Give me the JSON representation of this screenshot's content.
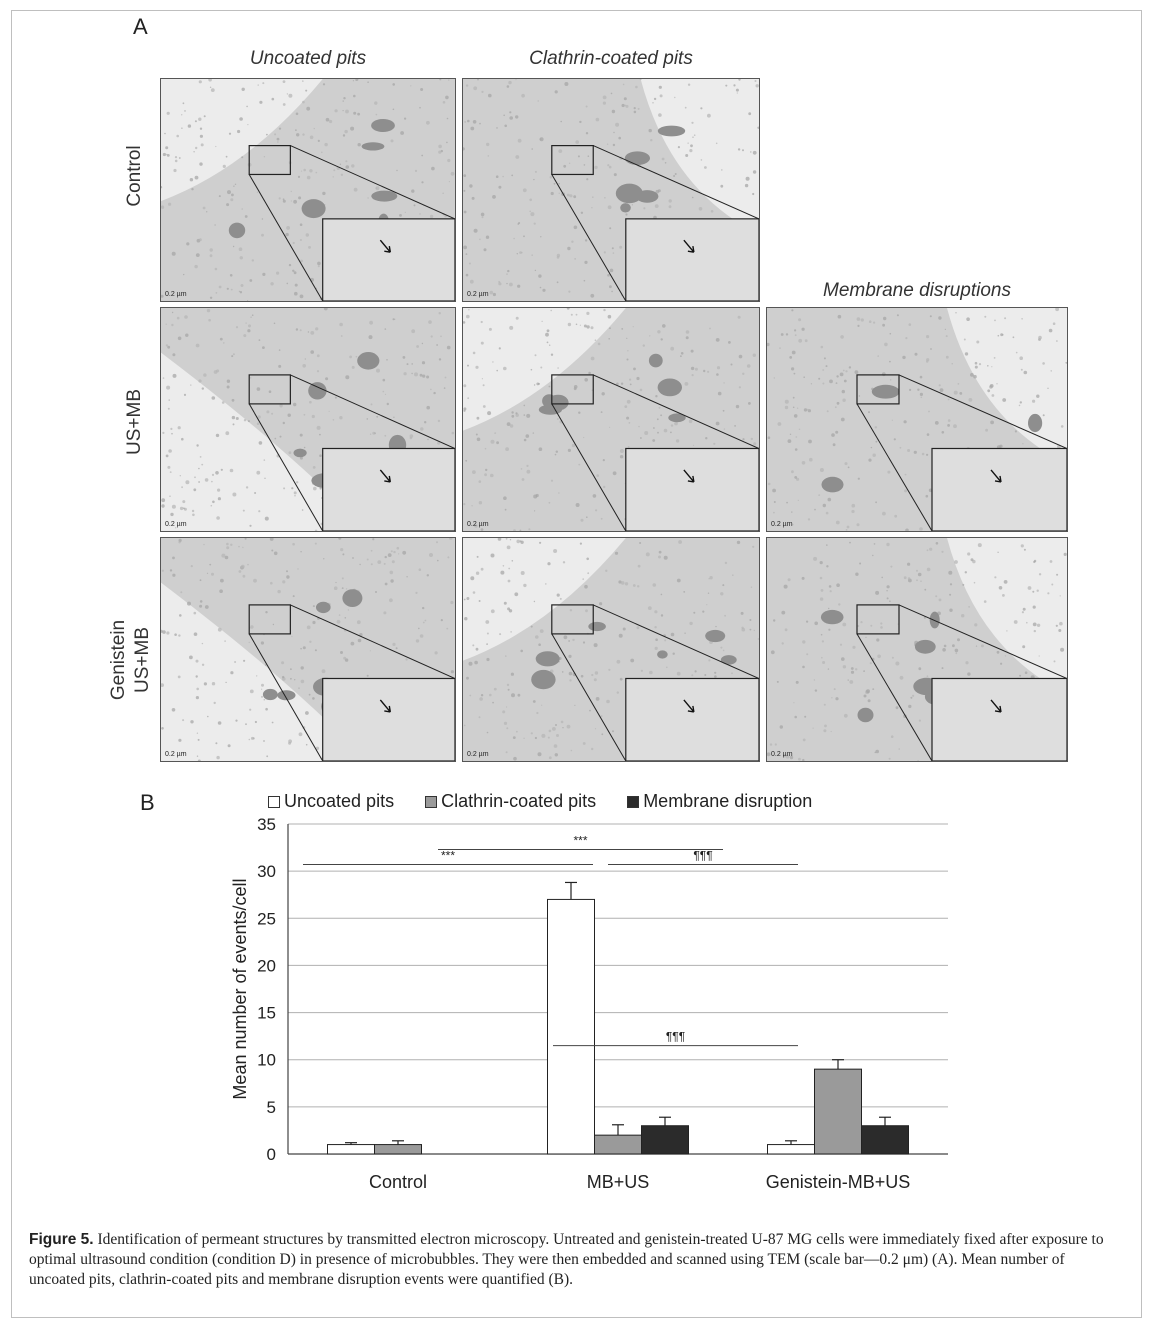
{
  "panel_a": {
    "letter": "A",
    "columns": [
      "Uncoated pits",
      "Clathrin-coated pits",
      "Membrane disruptions"
    ],
    "rows": [
      "Control",
      "US+MB",
      "Genistein\nUS+MB"
    ],
    "row_line1": [
      "Control",
      "US+MB",
      "Genistein"
    ],
    "row_line2": [
      "",
      "",
      "US+MB"
    ],
    "scale_label": "0.2 µm"
  },
  "panel_b": {
    "letter": "B"
  },
  "chart_data": {
    "type": "bar",
    "categories": [
      "Control",
      "MB+US",
      "Genistein-MB+US"
    ],
    "series": [
      {
        "name": "Uncoated pits",
        "values": [
          1,
          27,
          1
        ],
        "errors": [
          0.2,
          1.8,
          0.4
        ],
        "color": "#ffffff"
      },
      {
        "name": "Clathrin-coated pits",
        "values": [
          1,
          2,
          9
        ],
        "errors": [
          0.4,
          1.1,
          1.0
        ],
        "color": "#9a9a9a"
      },
      {
        "name": "Membrane disruption",
        "values": [
          0,
          3,
          3
        ],
        "errors": [
          0,
          0.9,
          0.9
        ],
        "color": "#2b2b2b"
      }
    ],
    "ylabel": "Mean number of events/cell",
    "ylim": [
      0,
      35
    ],
    "yticks": [
      0,
      5,
      10,
      15,
      20,
      25,
      30,
      35
    ],
    "grid": true,
    "legend_position": "top",
    "annotations": [
      {
        "label": "***",
        "from": "Control",
        "to": "MB+US",
        "level": 30.7
      },
      {
        "label": "***",
        "from": "Control",
        "to": "Genistein-MB+US",
        "level": 32.3
      },
      {
        "label": "¶¶¶",
        "from": "MB+US",
        "to": "Genistein-MB+US",
        "level": 30.7
      },
      {
        "label": "¶¶¶",
        "from": "MB+US",
        "to": "Genistein-MB+US",
        "level": 11.5
      }
    ]
  },
  "caption": {
    "label": "Figure 5.",
    "text": " Identification of permeant structures by transmitted electron microscopy. Untreated and genistein-treated U-87 MG cells were immediately fixed after exposure to optimal ultrasound condition (condition D) in presence of microbubbles. They were then embedded and scanned using TEM (scale bar—0.2 μm) (A). Mean number of uncoated pits, clathrin-coated pits and membrane disruption events were quantified (B)."
  }
}
